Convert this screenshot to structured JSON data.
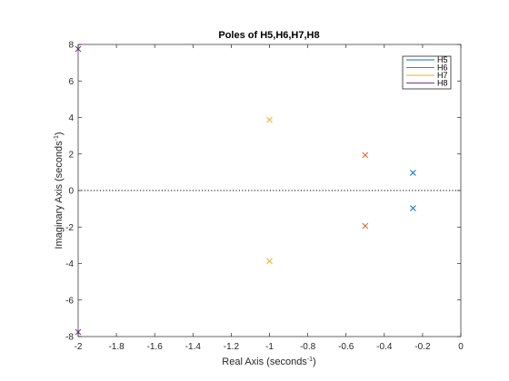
{
  "chart_data": {
    "type": "scatter",
    "title": "Poles of H5,H6,H7,H8",
    "xlabel": "Real Axis (seconds",
    "xlabel_sup": "-1",
    "xlabel_end": ")",
    "ylabel": "Imaginary Axis (seconds",
    "ylabel_sup": "-1",
    "ylabel_end": ")",
    "xlim": [
      -2,
      0
    ],
    "ylim": [
      -8,
      8
    ],
    "xticks": [
      -2,
      -1.8,
      -1.6,
      -1.4,
      -1.2,
      -1,
      -0.8,
      -0.6,
      -0.4,
      -0.2,
      0
    ],
    "yticks": [
      -8,
      -6,
      -4,
      -2,
      0,
      2,
      4,
      6,
      8
    ],
    "xtick_labels": [
      "-2",
      "-1.8",
      "-1.6",
      "-1.4",
      "-1.2",
      "-1",
      "-0.8",
      "-0.6",
      "-0.4",
      "-0.2",
      "0"
    ],
    "ytick_labels": [
      "-8",
      "-6",
      "-4",
      "-2",
      "0",
      "2",
      "4",
      "6",
      "8"
    ],
    "marker": "x",
    "grid": false,
    "zero_line": "dotted",
    "legend_position": "top-right",
    "series": [
      {
        "name": "H5",
        "color": "#0072BD",
        "points": [
          [
            -0.25,
            0.97
          ],
          [
            -0.25,
            -0.97
          ]
        ]
      },
      {
        "name": "H6",
        "color": "#D95319",
        "points": [
          [
            -0.5,
            1.94
          ],
          [
            -0.5,
            -1.94
          ]
        ]
      },
      {
        "name": "H7",
        "color": "#EDB120",
        "points": [
          [
            -1.0,
            3.87
          ],
          [
            -1.0,
            -3.87
          ]
        ]
      },
      {
        "name": "H8",
        "color": "#7E2F8E",
        "points": [
          [
            -2.0,
            7.75
          ],
          [
            -2.0,
            -7.75
          ]
        ]
      }
    ]
  }
}
